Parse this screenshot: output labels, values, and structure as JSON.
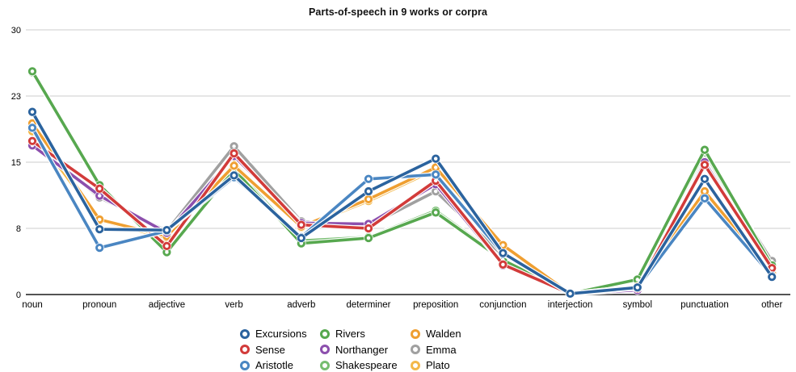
{
  "chart_data": {
    "type": "line",
    "title": "Parts-of-speech in 9 works or corpra",
    "categories": [
      "noun",
      "pronoun",
      "adjective",
      "verb",
      "adverb",
      "determiner",
      "preposition",
      "conjunction",
      "interjection",
      "symbol",
      "punctuation",
      "other"
    ],
    "xlabel": "",
    "ylabel": "",
    "ylim": [
      0,
      30
    ],
    "grid": true,
    "y_axis": {
      "ticks": [
        {
          "value": 0,
          "label": "0"
        },
        {
          "value": 7.5,
          "label": "8"
        },
        {
          "value": 15,
          "label": "15"
        },
        {
          "value": 22.5,
          "label": "23"
        },
        {
          "value": 30,
          "label": "30"
        }
      ]
    },
    "series": [
      {
        "name": "Excursions",
        "color": "#2b639e",
        "values": [
          20.7,
          7.4,
          7.3,
          13.5,
          6.4,
          11.7,
          15.4,
          4.7,
          0.1,
          0.8,
          13.1,
          2.0
        ]
      },
      {
        "name": "Sense",
        "color": "#d23b3a",
        "values": [
          17.4,
          12.0,
          5.5,
          16.0,
          7.9,
          7.5,
          12.9,
          3.4,
          0.1,
          0.7,
          14.7,
          3.0
        ]
      },
      {
        "name": "Aristotle",
        "color": "#4a86c2",
        "values": [
          18.9,
          5.3,
          7.2,
          13.3,
          6.5,
          13.1,
          13.6,
          4.6,
          0.1,
          0.8,
          10.9,
          2.1
        ]
      },
      {
        "name": "Rivers",
        "color": "#57a84f",
        "values": [
          25.3,
          12.4,
          4.8,
          14.2,
          5.8,
          6.4,
          9.3,
          3.9,
          0.1,
          1.7,
          16.4,
          3.3
        ]
      },
      {
        "name": "Northanger",
        "color": "#8c4fad",
        "values": [
          16.9,
          11.2,
          7.0,
          15.7,
          8.1,
          8.0,
          12.5,
          3.3,
          0.1,
          0.5,
          15.0,
          2.9
        ]
      },
      {
        "name": "Shakespeare",
        "color": "#76bd70",
        "values": [
          25.2,
          12.3,
          4.9,
          14.4,
          6.1,
          6.5,
          9.5,
          4.0,
          0.1,
          1.6,
          16.1,
          3.2
        ]
      },
      {
        "name": "Walden",
        "color": "#ef9f31",
        "values": [
          19.4,
          8.5,
          6.6,
          14.6,
          7.7,
          10.8,
          14.4,
          5.6,
          0.1,
          0.9,
          11.7,
          2.4
        ]
      },
      {
        "name": "Emma",
        "color": "#a0a0a0",
        "values": [
          17.1,
          11.0,
          7.2,
          16.8,
          8.3,
          7.8,
          11.7,
          4.4,
          0.1,
          0.6,
          15.8,
          3.8
        ]
      },
      {
        "name": "Plato",
        "color": "#f3b84a",
        "values": [
          18.5,
          8.4,
          6.4,
          14.8,
          7.6,
          10.6,
          14.2,
          5.5,
          0.1,
          0.9,
          11.5,
          2.3
        ]
      }
    ],
    "draw_order": [
      "Emma",
      "Shakespeare",
      "Rivers",
      "Plato",
      "Walden",
      "Northanger",
      "Sense",
      "Aristotle",
      "Excursions"
    ],
    "legend": {
      "position": "bottom",
      "columns": [
        [
          "Excursions",
          "Sense",
          "Aristotle"
        ],
        [
          "Rivers",
          "Northanger",
          "Shakespeare"
        ],
        [
          "Walden",
          "Emma",
          "Plato"
        ]
      ]
    }
  }
}
